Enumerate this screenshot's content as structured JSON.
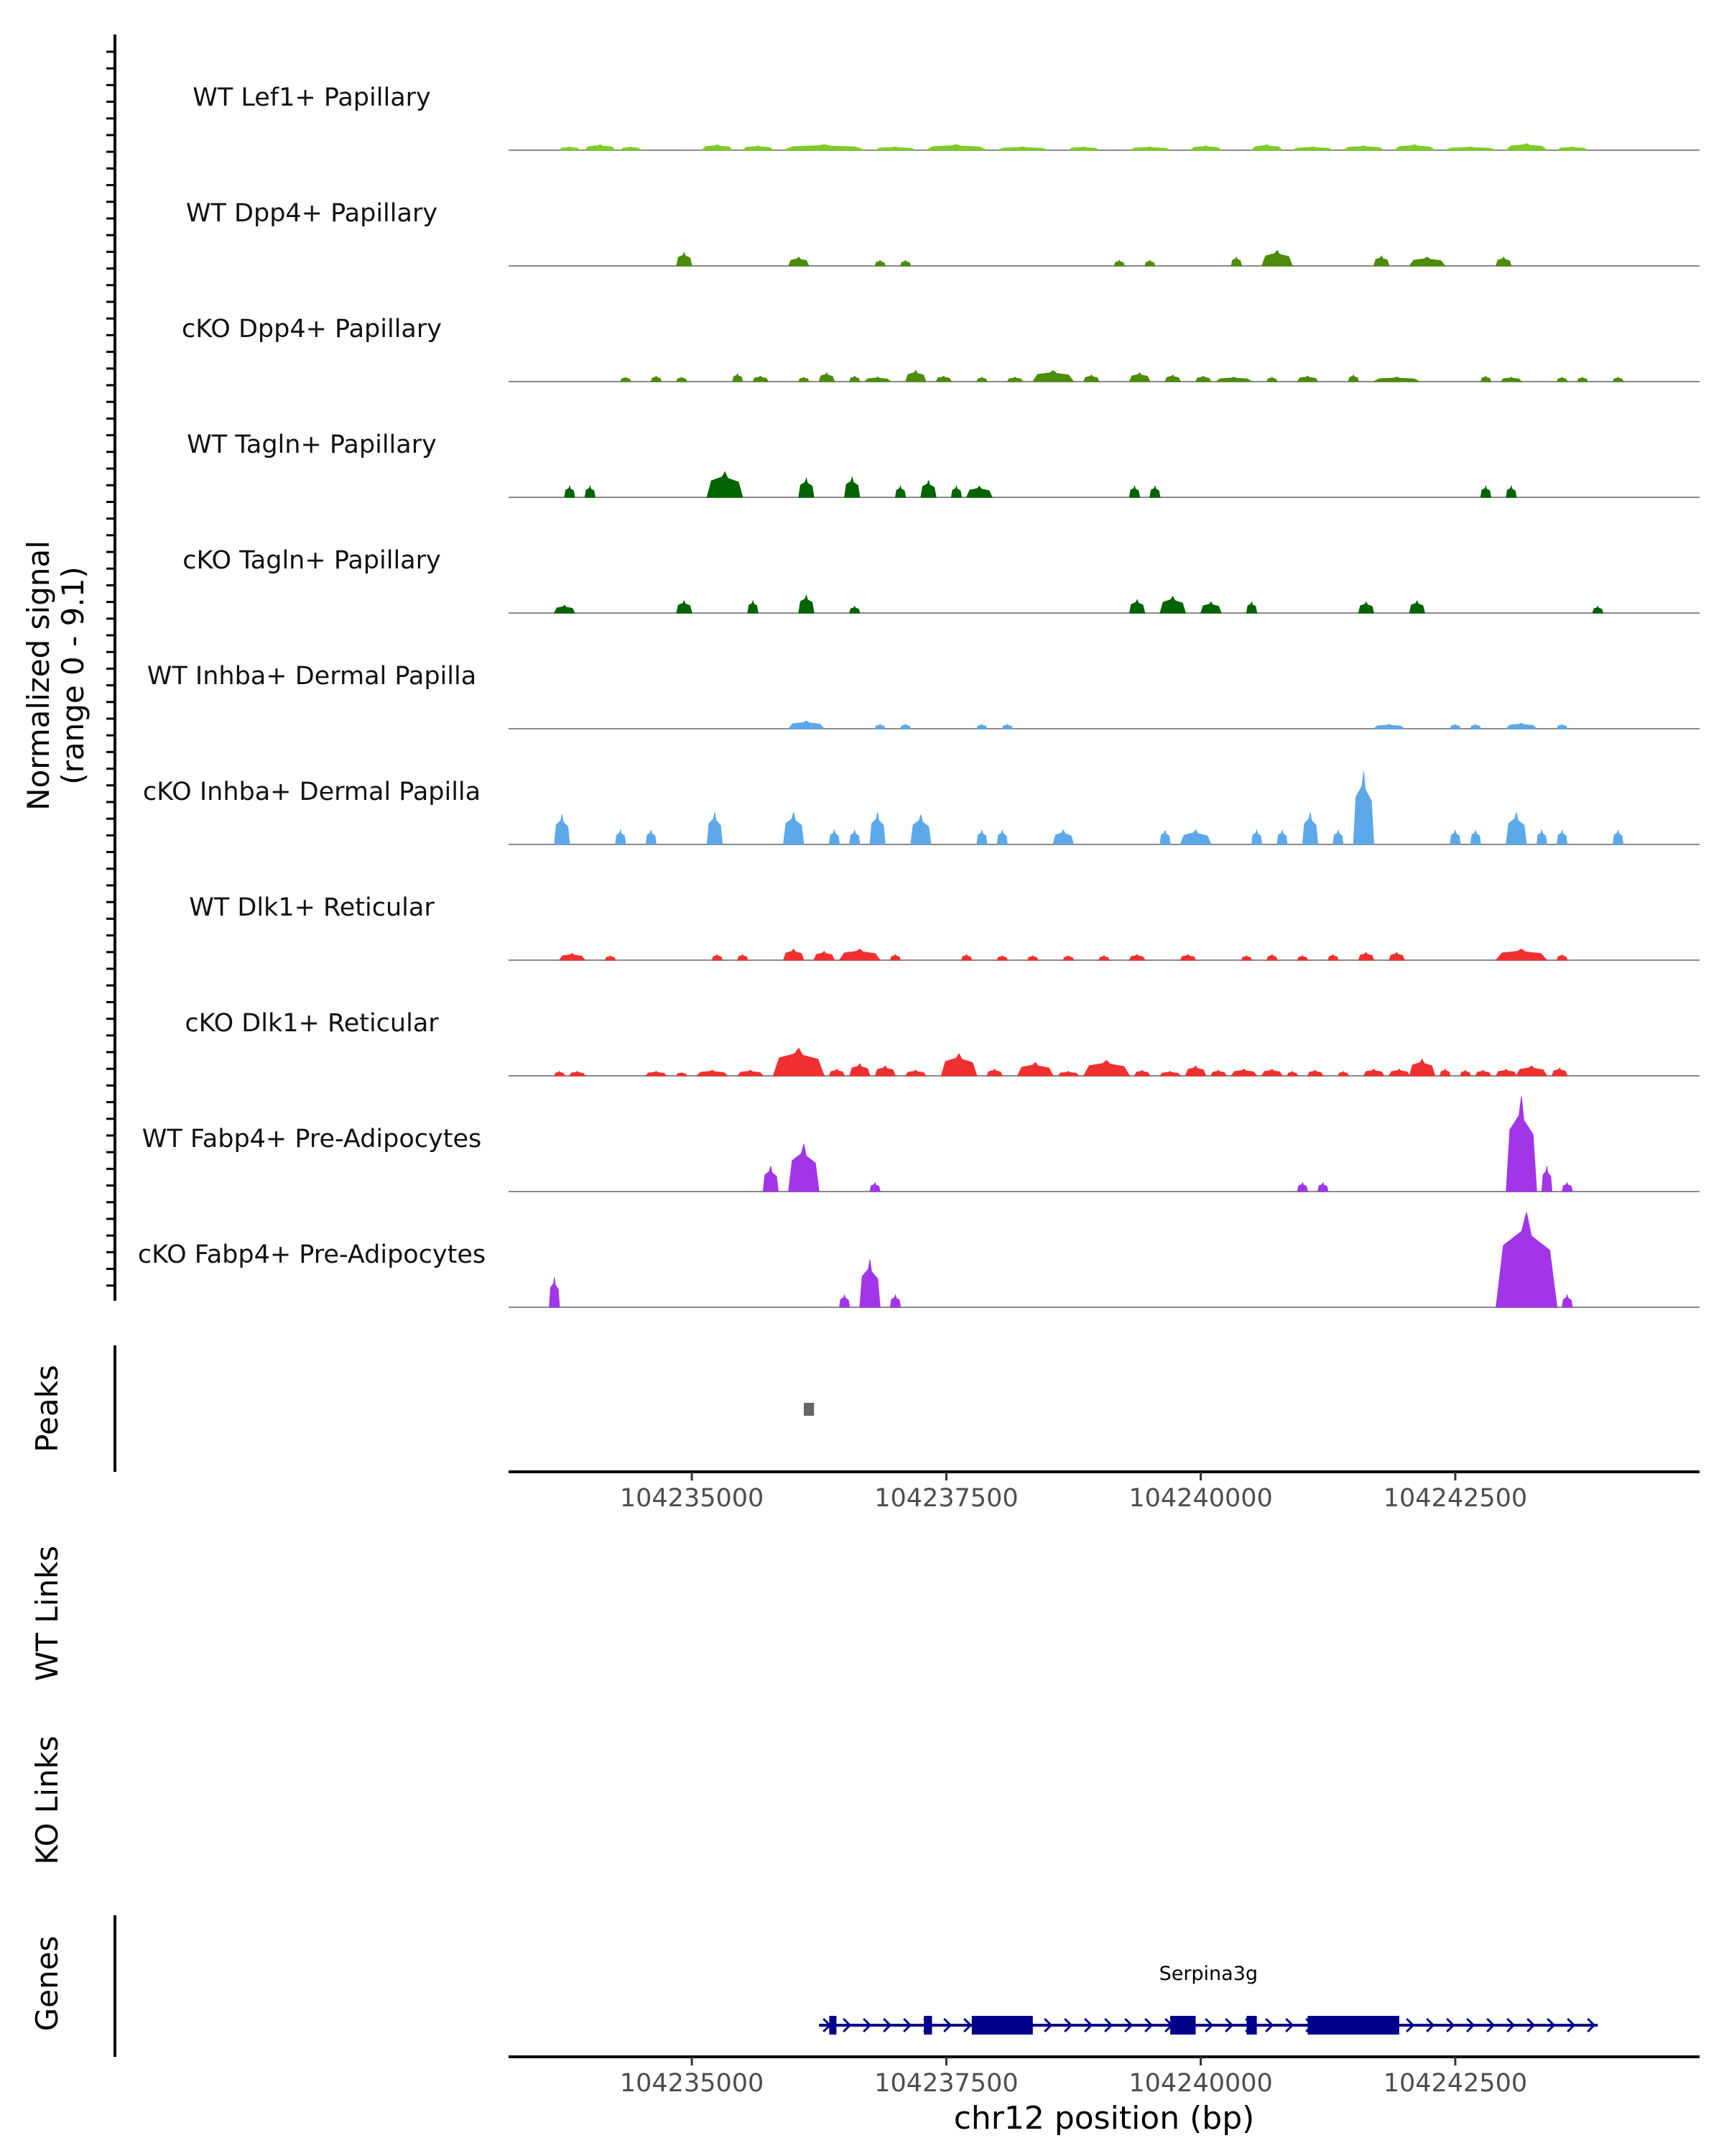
{
  "chart_data": {
    "type": "area",
    "title": "",
    "xlabel": "chr12 position (bp)",
    "coverage_ylabel": [
      "Normalized signal",
      "(range 0 - 9.1)"
    ],
    "ylim": [
      0,
      9.1
    ],
    "xlim": [
      104233200,
      104244900
    ],
    "x_ticks": [
      104235000,
      104237500,
      104240000,
      104242500
    ],
    "x_tick_labels": [
      "104235000",
      "104237500",
      "104240000",
      "104242500"
    ],
    "panel_labels": {
      "peaks": "Peaks",
      "wt_links": "WT Links",
      "ko_links": "KO Links",
      "genes": "Genes"
    },
    "tracks": [
      {
        "name": "WT Lef1+ Papillary",
        "color": "#7CCD28",
        "peaks": [
          [
            104233700,
            104233900,
            0.3
          ],
          [
            104233950,
            104234250,
            0.5
          ],
          [
            104234300,
            104234500,
            0.3
          ],
          [
            104235100,
            104235400,
            0.5
          ],
          [
            104235500,
            104235800,
            0.4
          ],
          [
            104235900,
            104236700,
            0.5
          ],
          [
            104236800,
            104237200,
            0.3
          ],
          [
            104237300,
            104237900,
            0.5
          ],
          [
            104238000,
            104238500,
            0.3
          ],
          [
            104238700,
            104239000,
            0.3
          ],
          [
            104239300,
            104239700,
            0.3
          ],
          [
            104239900,
            104240200,
            0.4
          ],
          [
            104240500,
            104240800,
            0.5
          ],
          [
            104240900,
            104241300,
            0.3
          ],
          [
            104241400,
            104241800,
            0.4
          ],
          [
            104241900,
            104242300,
            0.5
          ],
          [
            104242400,
            104242900,
            0.3
          ],
          [
            104243000,
            104243400,
            0.6
          ],
          [
            104243500,
            104243800,
            0.3
          ]
        ]
      },
      {
        "name": "WT Dpp4+ Papillary",
        "color": "#4C8C0A",
        "peaks": [
          [
            104234850,
            104235000,
            1.2
          ],
          [
            104235950,
            104236150,
            0.8
          ],
          [
            104236800,
            104236900,
            0.5
          ],
          [
            104237050,
            104237150,
            0.5
          ],
          [
            104239150,
            104239250,
            0.5
          ],
          [
            104239450,
            104239550,
            0.5
          ],
          [
            104240300,
            104240400,
            0.8
          ],
          [
            104240600,
            104240900,
            1.4
          ],
          [
            104241700,
            104241850,
            0.9
          ],
          [
            104242050,
            104242400,
            0.8
          ],
          [
            104242900,
            104243050,
            0.8
          ]
        ]
      },
      {
        "name": "cKO Dpp4+ Papillary",
        "color": "#4C8C0A",
        "peaks": [
          [
            104234300,
            104234400,
            0.4
          ],
          [
            104234600,
            104234700,
            0.5
          ],
          [
            104234850,
            104234950,
            0.4
          ],
          [
            104235400,
            104235500,
            0.7
          ],
          [
            104235600,
            104235750,
            0.5
          ],
          [
            104236050,
            104236150,
            0.4
          ],
          [
            104236250,
            104236400,
            0.8
          ],
          [
            104236550,
            104236650,
            0.5
          ],
          [
            104236700,
            104236950,
            0.4
          ],
          [
            104237100,
            104237300,
            1.0
          ],
          [
            104237400,
            104237550,
            0.5
          ],
          [
            104237800,
            104237900,
            0.4
          ],
          [
            104238100,
            104238250,
            0.4
          ],
          [
            104238350,
            104238750,
            1.0
          ],
          [
            104238850,
            104239000,
            0.6
          ],
          [
            104239300,
            104239500,
            0.8
          ],
          [
            104239650,
            104239800,
            0.6
          ],
          [
            104239950,
            104240100,
            0.5
          ],
          [
            104240150,
            104240500,
            0.4
          ],
          [
            104240650,
            104240750,
            0.4
          ],
          [
            104240950,
            104241150,
            0.5
          ],
          [
            104241450,
            104241550,
            0.6
          ],
          [
            104241700,
            104242150,
            0.4
          ],
          [
            104242750,
            104242850,
            0.5
          ],
          [
            104242950,
            104243150,
            0.4
          ],
          [
            104243500,
            104243600,
            0.4
          ],
          [
            104243700,
            104243800,
            0.4
          ],
          [
            104244050,
            104244150,
            0.4
          ]
        ]
      },
      {
        "name": "WT Tagln+ Papillary",
        "color": "#006400",
        "peaks": [
          [
            104233750,
            104233850,
            1.0
          ],
          [
            104233950,
            104234050,
            1.0
          ],
          [
            104235150,
            104235500,
            2.3
          ],
          [
            104236050,
            104236200,
            1.7
          ],
          [
            104236500,
            104236650,
            1.8
          ],
          [
            104237000,
            104237100,
            1.0
          ],
          [
            104237250,
            104237400,
            1.5
          ],
          [
            104237550,
            104237650,
            1.0
          ],
          [
            104237700,
            104237950,
            1.0
          ],
          [
            104239300,
            104239400,
            1.0
          ],
          [
            104239500,
            104239600,
            1.0
          ],
          [
            104242750,
            104242850,
            1.0
          ],
          [
            104243000,
            104243100,
            1.0
          ]
        ]
      },
      {
        "name": "cKO Tagln+ Papillary",
        "color": "#006400",
        "peaks": [
          [
            104233650,
            104233850,
            0.7
          ],
          [
            104234850,
            104235000,
            1.1
          ],
          [
            104235550,
            104235650,
            1.1
          ],
          [
            104236050,
            104236200,
            1.6
          ],
          [
            104236550,
            104236650,
            0.6
          ],
          [
            104239300,
            104239450,
            1.2
          ],
          [
            104239600,
            104239850,
            1.5
          ],
          [
            104240000,
            104240200,
            1.0
          ],
          [
            104240450,
            104240550,
            1.0
          ],
          [
            104241550,
            104241700,
            1.0
          ],
          [
            104242050,
            104242200,
            1.1
          ],
          [
            104243850,
            104243950,
            0.6
          ]
        ]
      },
      {
        "name": "WT Inhba+ Dermal Papilla",
        "color": "#5DA8E8",
        "peaks": [
          [
            104235950,
            104236300,
            0.7
          ],
          [
            104236800,
            104236900,
            0.4
          ],
          [
            104237050,
            104237150,
            0.4
          ],
          [
            104237800,
            104237900,
            0.4
          ],
          [
            104238050,
            104238150,
            0.4
          ],
          [
            104241700,
            104242000,
            0.4
          ],
          [
            104242450,
            104242550,
            0.4
          ],
          [
            104242650,
            104242750,
            0.4
          ],
          [
            104243000,
            104243300,
            0.5
          ],
          [
            104243500,
            104243600,
            0.4
          ]
        ]
      },
      {
        "name": "cKO Inhba+ Dermal Papilla",
        "color": "#5DA8E8",
        "peaks": [
          [
            104233650,
            104233800,
            2.7
          ],
          [
            104234250,
            104234350,
            1.3
          ],
          [
            104234550,
            104234650,
            1.3
          ],
          [
            104235150,
            104235300,
            2.9
          ],
          [
            104235900,
            104236100,
            2.9
          ],
          [
            104236350,
            104236450,
            1.3
          ],
          [
            104236550,
            104236650,
            1.3
          ],
          [
            104236750,
            104236900,
            2.9
          ],
          [
            104237150,
            104237350,
            2.7
          ],
          [
            104237800,
            104237900,
            1.3
          ],
          [
            104238000,
            104238100,
            1.3
          ],
          [
            104238550,
            104238750,
            1.3
          ],
          [
            104239600,
            104239700,
            1.3
          ],
          [
            104239800,
            104240100,
            1.3
          ],
          [
            104240500,
            104240600,
            1.3
          ],
          [
            104240750,
            104240850,
            1.3
          ],
          [
            104241000,
            104241150,
            2.9
          ],
          [
            104241300,
            104241400,
            1.3
          ],
          [
            104241500,
            104241700,
            6.6
          ],
          [
            104242450,
            104242550,
            1.3
          ],
          [
            104242650,
            104242750,
            1.3
          ],
          [
            104243000,
            104243200,
            2.9
          ],
          [
            104243300,
            104243400,
            1.3
          ],
          [
            104243500,
            104243600,
            1.3
          ],
          [
            104244050,
            104244150,
            1.3
          ]
        ]
      },
      {
        "name": "WT Dlk1+ Reticular",
        "color": "#F03030",
        "peaks": [
          [
            104233700,
            104233950,
            0.6
          ],
          [
            104234150,
            104234250,
            0.4
          ],
          [
            104235200,
            104235300,
            0.5
          ],
          [
            104235450,
            104235550,
            0.5
          ],
          [
            104235900,
            104236100,
            1.0
          ],
          [
            104236200,
            104236400,
            0.8
          ],
          [
            104236450,
            104236850,
            1.0
          ],
          [
            104236950,
            104237050,
            0.5
          ],
          [
            104237650,
            104237750,
            0.5
          ],
          [
            104238000,
            104238100,
            0.4
          ],
          [
            104238300,
            104238400,
            0.4
          ],
          [
            104238650,
            104238750,
            0.4
          ],
          [
            104239000,
            104239100,
            0.4
          ],
          [
            104239300,
            104239450,
            0.5
          ],
          [
            104239800,
            104239950,
            0.5
          ],
          [
            104240400,
            104240500,
            0.4
          ],
          [
            104240650,
            104240750,
            0.5
          ],
          [
            104240950,
            104241050,
            0.4
          ],
          [
            104241250,
            104241350,
            0.5
          ],
          [
            104241550,
            104241700,
            0.7
          ],
          [
            104241850,
            104242000,
            0.7
          ],
          [
            104242900,
            104243400,
            1.0
          ],
          [
            104243500,
            104243600,
            0.5
          ]
        ]
      },
      {
        "name": "cKO Dlk1+ Reticular",
        "color": "#F03030",
        "peaks": [
          [
            104233650,
            104233750,
            0.4
          ],
          [
            104233800,
            104233950,
            0.4
          ],
          [
            104234550,
            104234750,
            0.4
          ],
          [
            104234850,
            104234950,
            0.3
          ],
          [
            104235050,
            104235350,
            0.5
          ],
          [
            104235450,
            104235700,
            0.5
          ],
          [
            104235800,
            104236300,
            2.5
          ],
          [
            104236350,
            104236500,
            0.6
          ],
          [
            104236550,
            104236750,
            1.1
          ],
          [
            104236800,
            104237000,
            0.9
          ],
          [
            104237100,
            104237300,
            0.5
          ],
          [
            104237450,
            104237800,
            2.0
          ],
          [
            104237900,
            104238050,
            0.6
          ],
          [
            104238200,
            104238550,
            1.2
          ],
          [
            104238600,
            104238800,
            0.4
          ],
          [
            104238850,
            104239300,
            1.4
          ],
          [
            104239350,
            104239500,
            0.5
          ],
          [
            104239600,
            104239800,
            0.4
          ],
          [
            104239850,
            104240050,
            0.9
          ],
          [
            104240100,
            104240250,
            0.5
          ],
          [
            104240300,
            104240550,
            0.6
          ],
          [
            104240600,
            104240800,
            0.6
          ],
          [
            104240850,
            104240950,
            0.4
          ],
          [
            104241050,
            104241200,
            0.5
          ],
          [
            104241350,
            104241450,
            0.4
          ],
          [
            104241600,
            104241800,
            0.6
          ],
          [
            104241850,
            104242050,
            0.6
          ],
          [
            104242050,
            104242300,
            1.5
          ],
          [
            104242350,
            104242450,
            0.6
          ],
          [
            104242550,
            104242650,
            0.5
          ],
          [
            104242700,
            104242850,
            0.5
          ],
          [
            104242900,
            104243100,
            0.6
          ],
          [
            104243100,
            104243400,
            0.9
          ],
          [
            104243450,
            104243600,
            0.7
          ]
        ]
      },
      {
        "name": "WT Fabp4+ Pre-Adipocytes",
        "color": "#A235E8",
        "peaks": [
          [
            104235700,
            104235850,
            2.3
          ],
          [
            104235950,
            104236250,
            4.3
          ],
          [
            104236750,
            104236850,
            0.8
          ],
          [
            104240950,
            104241050,
            0.8
          ],
          [
            104241150,
            104241250,
            0.8
          ],
          [
            104243000,
            104243300,
            8.6
          ],
          [
            104243350,
            104243450,
            2.3
          ],
          [
            104243550,
            104243650,
            0.8
          ]
        ]
      },
      {
        "name": "cKO Fabp4+ Pre-Adipocytes",
        "color": "#A235E8",
        "peaks": [
          [
            104233600,
            104233700,
            2.7
          ],
          [
            104236450,
            104236550,
            1.1
          ],
          [
            104236650,
            104236850,
            4.3
          ],
          [
            104236950,
            104237050,
            1.1
          ],
          [
            104242900,
            104243500,
            8.6
          ],
          [
            104243550,
            104243650,
            1.1
          ]
        ]
      }
    ],
    "peaks_track": [
      [
        104236100,
        104236200
      ]
    ],
    "gene": {
      "name": "Serpina3g",
      "start": 104236250,
      "end": 104243900,
      "strand": "+",
      "exons": [
        [
          104236350,
          104236420
        ],
        [
          104237280,
          104237360
        ],
        [
          104237750,
          104238350
        ],
        [
          104239700,
          104239950
        ],
        [
          104240450,
          104240550
        ],
        [
          104241050,
          104241950
        ]
      ]
    }
  }
}
